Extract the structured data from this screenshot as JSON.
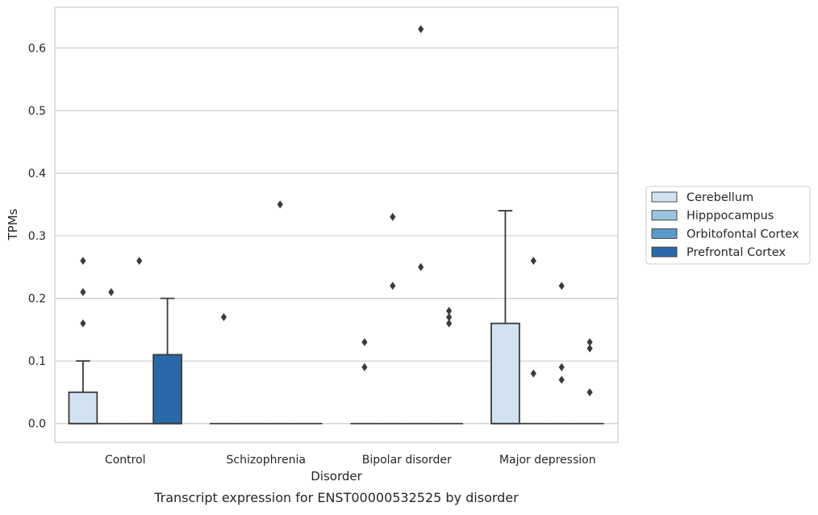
{
  "chart_data": {
    "type": "boxplot",
    "caption": "Transcript expression for ENST00000532525 by disorder",
    "xlabel": "Disorder",
    "ylabel": "TPMs",
    "ylim": [
      -0.03,
      0.665
    ],
    "yticks": [
      0.0,
      0.1,
      0.2,
      0.3,
      0.4,
      0.5,
      0.6
    ],
    "ytick_labels": [
      "0.0",
      "0.1",
      "0.2",
      "0.3",
      "0.4",
      "0.5",
      "0.6"
    ],
    "grid": true,
    "legend_position": "right",
    "categories": [
      "Control",
      "Schizophrenia",
      "Bipolar disorder",
      "Major depression"
    ],
    "series": [
      {
        "name": "Cerebellum",
        "color": "#d2e2f1",
        "boxes": [
          {
            "q1": 0,
            "median": 0,
            "q3": 0.05,
            "whisker_low": 0,
            "whisker_high": 0.1,
            "outliers": [
              0.16,
              0.21,
              0.26
            ]
          },
          {
            "q1": 0,
            "median": 0,
            "q3": 0,
            "whisker_low": 0,
            "whisker_high": 0,
            "outliers": [
              0.17
            ]
          },
          {
            "q1": 0,
            "median": 0,
            "q3": 0,
            "whisker_low": 0,
            "whisker_high": 0,
            "outliers": [
              0.09,
              0.13
            ]
          },
          {
            "q1": 0,
            "median": 0,
            "q3": 0.16,
            "whisker_low": 0,
            "whisker_high": 0.34,
            "outliers": []
          }
        ]
      },
      {
        "name": "Hipppocampus",
        "color": "#9ac3de",
        "boxes": [
          {
            "q1": 0,
            "median": 0,
            "q3": 0,
            "whisker_low": 0,
            "whisker_high": 0,
            "outliers": [
              0.21
            ]
          },
          {
            "q1": 0,
            "median": 0,
            "q3": 0,
            "whisker_low": 0,
            "whisker_high": 0,
            "outliers": []
          },
          {
            "q1": 0,
            "median": 0,
            "q3": 0,
            "whisker_low": 0,
            "whisker_high": 0,
            "outliers": [
              0.22,
              0.33
            ]
          },
          {
            "q1": 0,
            "median": 0,
            "q3": 0,
            "whisker_low": 0,
            "whisker_high": 0,
            "outliers": [
              0.08,
              0.26
            ]
          }
        ]
      },
      {
        "name": "Orbitofontal Cortex",
        "color": "#5a9ac9",
        "boxes": [
          {
            "q1": 0,
            "median": 0,
            "q3": 0,
            "whisker_low": 0,
            "whisker_high": 0,
            "outliers": [
              0.26
            ]
          },
          {
            "q1": 0,
            "median": 0,
            "q3": 0,
            "whisker_low": 0,
            "whisker_high": 0,
            "outliers": [
              0.35
            ]
          },
          {
            "q1": 0,
            "median": 0,
            "q3": 0,
            "whisker_low": 0,
            "whisker_high": 0,
            "outliers": [
              0.25,
              0.63
            ]
          },
          {
            "q1": 0,
            "median": 0,
            "q3": 0,
            "whisker_low": 0,
            "whisker_high": 0,
            "outliers": [
              0.07,
              0.09,
              0.22
            ]
          }
        ]
      },
      {
        "name": "Prefrontal Cortex",
        "color": "#2a69a8",
        "boxes": [
          {
            "q1": 0,
            "median": 0,
            "q3": 0.11,
            "whisker_low": 0,
            "whisker_high": 0.2,
            "outliers": []
          },
          {
            "q1": 0,
            "median": 0,
            "q3": 0,
            "whisker_low": 0,
            "whisker_high": 0,
            "outliers": []
          },
          {
            "q1": 0,
            "median": 0,
            "q3": 0,
            "whisker_low": 0,
            "whisker_high": 0,
            "outliers": [
              0.16,
              0.17,
              0.18
            ]
          },
          {
            "q1": 0,
            "median": 0,
            "q3": 0,
            "whisker_low": 0,
            "whisker_high": 0,
            "outliers": [
              0.05,
              0.12,
              0.13
            ]
          }
        ]
      }
    ]
  }
}
